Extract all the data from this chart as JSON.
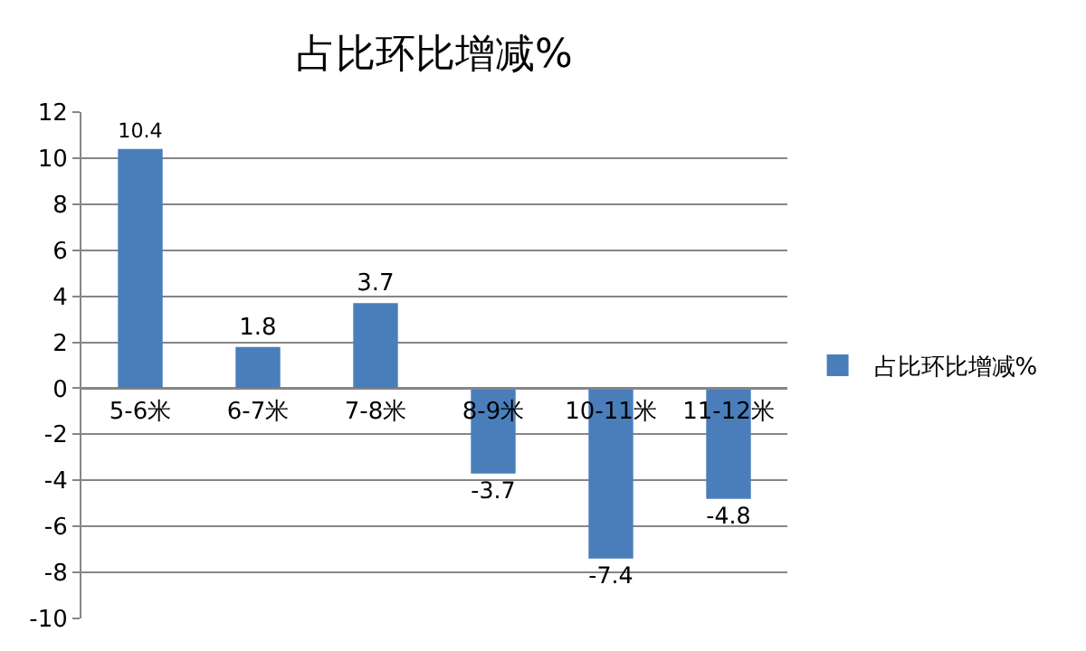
{
  "chart_data": {
    "type": "bar",
    "title": "占比环比增减%",
    "categories": [
      "5-6米",
      "6-7米",
      "7-8米",
      "8-9米",
      "10-11米",
      "11-12米"
    ],
    "series": [
      {
        "name": "占比环比增减%",
        "color": "#4a7ebb",
        "values": [
          10.4,
          1.8,
          3.7,
          -3.7,
          -7.4,
          -4.8
        ]
      }
    ],
    "ylim": [
      -10,
      12
    ],
    "yticks": [
      -10,
      -8,
      -6,
      -4,
      -2,
      0,
      2,
      4,
      6,
      8,
      10,
      12
    ],
    "grid": "y",
    "legend": "right",
    "data_labels": true
  }
}
